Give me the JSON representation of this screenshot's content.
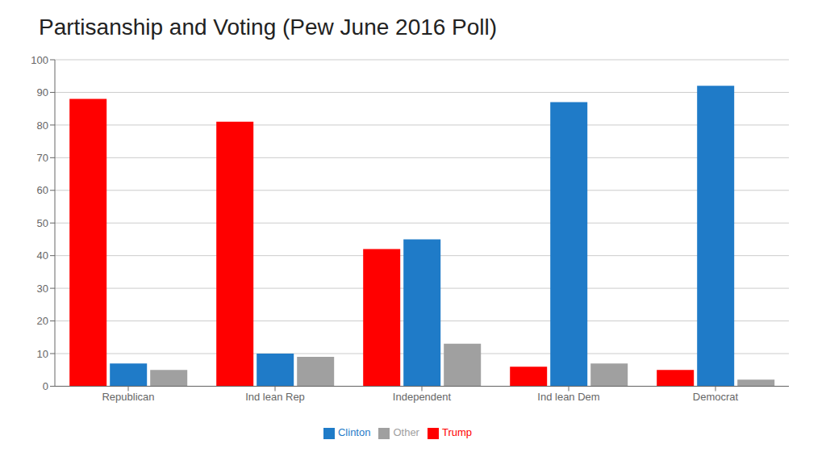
{
  "chart_data": {
    "type": "bar",
    "title": "Partisanship and Voting (Pew June 2016 Poll)",
    "categories": [
      "Republican",
      "Ind lean Rep",
      "Independent",
      "Ind lean Dem",
      "Democrat"
    ],
    "series": [
      {
        "name": "Trump",
        "color": "#FF0000",
        "values": [
          88,
          81,
          42,
          6,
          5
        ]
      },
      {
        "name": "Clinton",
        "color": "#1F7BC8",
        "values": [
          7,
          10,
          45,
          87,
          92
        ]
      },
      {
        "name": "Other",
        "color": "#A0A0A0",
        "values": [
          5,
          9,
          13,
          7,
          2
        ]
      }
    ],
    "ylim": [
      0,
      100
    ],
    "yticks": [
      0,
      10,
      20,
      30,
      40,
      50,
      60,
      70,
      80,
      90,
      100
    ],
    "grid": true,
    "legend": "bottom"
  }
}
